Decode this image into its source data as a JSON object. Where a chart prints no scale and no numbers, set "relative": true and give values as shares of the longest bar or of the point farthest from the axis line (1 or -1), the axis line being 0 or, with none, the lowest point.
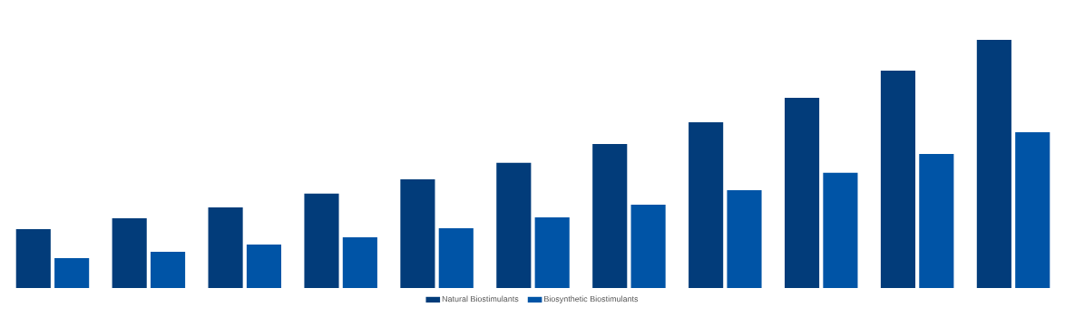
{
  "chart_data": {
    "type": "bar",
    "relative": true,
    "categories": [
      null,
      null,
      null,
      null,
      null,
      null,
      null,
      null,
      null,
      null,
      null
    ],
    "legend": "bottom",
    "series": [
      {
        "name": "Natural Biostimulants",
        "color": "#023c7a",
        "values": [
          0.237,
          0.281,
          0.325,
          0.38,
          0.438,
          0.504,
          0.58,
          0.668,
          0.766,
          0.876,
          1
        ]
      },
      {
        "name": "Biosynthetic Biostimulants",
        "color": "#0054a6",
        "values": [
          0.12,
          0.146,
          0.175,
          0.204,
          0.241,
          0.285,
          0.336,
          0.394,
          0.464,
          0.54,
          0.628
        ]
      }
    ]
  }
}
